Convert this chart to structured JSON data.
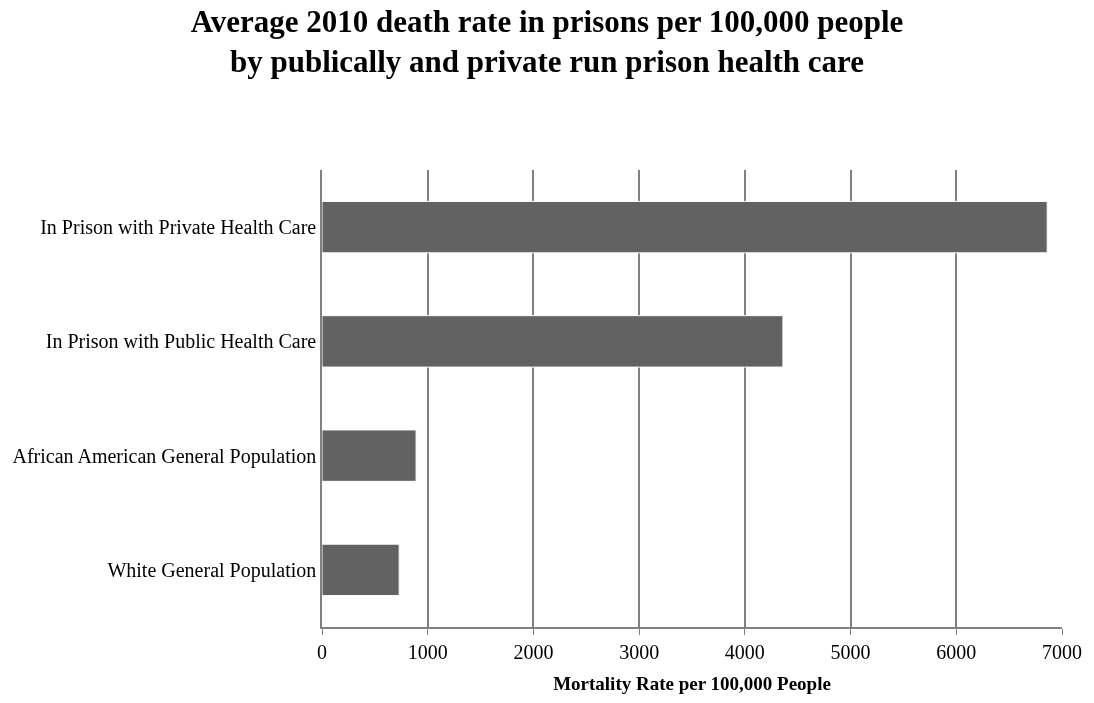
{
  "chart_data": {
    "type": "bar",
    "orientation": "horizontal",
    "title": "Average 2010 death rate in prisons per 100,000 people\nby publically and private run prison health care",
    "xlabel": "Mortality Rate per 100,000 People",
    "categories": [
      "In Prison with Private Health Care",
      "In Prison with Public Health Care",
      "African American General Population",
      "White General Population"
    ],
    "values": [
      6860,
      4360,
      890,
      730
    ],
    "color": "#626262",
    "xlim": [
      0,
      7000
    ],
    "xticks": [
      0,
      1000,
      2000,
      3000,
      4000,
      5000,
      6000,
      7000
    ],
    "grid": "x",
    "legend": false
  }
}
